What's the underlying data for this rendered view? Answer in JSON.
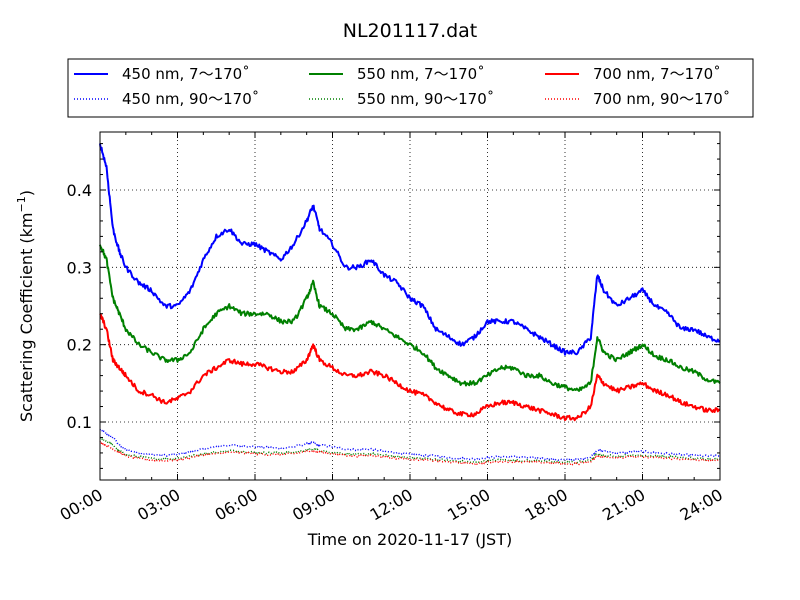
{
  "chart_data": {
    "type": "line",
    "title": "NL201117.dat",
    "xlabel": "Time on 2020-11-17 (JST)",
    "ylabel": "Scattering Coefficient (km",
    "ylabel_exponent": "−1",
    "ylabel_suffix": ")",
    "xlim": [
      0,
      24
    ],
    "ylim": [
      0.025,
      0.475
    ],
    "x_ticks": [
      0,
      3,
      6,
      9,
      12,
      15,
      18,
      21,
      24
    ],
    "x_tick_labels": [
      "00:00",
      "03:00",
      "06:00",
      "09:00",
      "12:00",
      "15:00",
      "18:00",
      "21:00",
      "24:00"
    ],
    "y_ticks": [
      0.1,
      0.2,
      0.3,
      0.4
    ],
    "y_tick_labels": [
      "0.1",
      "0.2",
      "0.3",
      "0.4"
    ],
    "grid": true,
    "legend_position": "top",
    "x_hours": [
      0,
      0.25,
      0.5,
      0.75,
      1,
      1.5,
      2,
      2.5,
      3,
      3.5,
      4,
      4.5,
      5,
      5.5,
      6,
      6.5,
      7,
      7.5,
      8,
      8.25,
      8.5,
      9,
      9.5,
      10,
      10.5,
      11,
      11.5,
      12,
      12.5,
      13,
      13.5,
      14,
      14.5,
      15,
      15.5,
      16,
      16.5,
      17,
      17.5,
      18,
      18.5,
      19,
      19.25,
      19.5,
      20,
      20.5,
      21,
      21.5,
      22,
      22.5,
      23,
      23.5,
      24
    ],
    "series": [
      {
        "name": "450 nm, 7～170˚",
        "color": "#0000ff",
        "style": "solid",
        "values": [
          0.46,
          0.43,
          0.35,
          0.32,
          0.3,
          0.28,
          0.27,
          0.25,
          0.25,
          0.27,
          0.31,
          0.34,
          0.35,
          0.33,
          0.33,
          0.32,
          0.31,
          0.33,
          0.36,
          0.38,
          0.35,
          0.33,
          0.3,
          0.3,
          0.31,
          0.29,
          0.28,
          0.26,
          0.25,
          0.22,
          0.21,
          0.2,
          0.21,
          0.23,
          0.23,
          0.23,
          0.22,
          0.21,
          0.2,
          0.19,
          0.19,
          0.21,
          0.29,
          0.27,
          0.25,
          0.26,
          0.27,
          0.25,
          0.24,
          0.22,
          0.22,
          0.21,
          0.205
        ]
      },
      {
        "name": "550 nm, 7～170˚",
        "color": "#008000",
        "style": "solid",
        "values": [
          0.33,
          0.31,
          0.26,
          0.24,
          0.22,
          0.2,
          0.19,
          0.18,
          0.18,
          0.19,
          0.22,
          0.24,
          0.25,
          0.24,
          0.24,
          0.24,
          0.23,
          0.23,
          0.26,
          0.28,
          0.25,
          0.24,
          0.22,
          0.22,
          0.23,
          0.22,
          0.21,
          0.2,
          0.19,
          0.17,
          0.16,
          0.15,
          0.15,
          0.16,
          0.17,
          0.17,
          0.16,
          0.16,
          0.15,
          0.145,
          0.14,
          0.15,
          0.21,
          0.19,
          0.18,
          0.19,
          0.2,
          0.185,
          0.18,
          0.17,
          0.165,
          0.155,
          0.15
        ]
      },
      {
        "name": "700 nm, 7～170˚",
        "color": "#ff0000",
        "style": "solid",
        "values": [
          0.24,
          0.22,
          0.18,
          0.17,
          0.16,
          0.14,
          0.135,
          0.125,
          0.13,
          0.14,
          0.16,
          0.17,
          0.18,
          0.175,
          0.175,
          0.17,
          0.165,
          0.165,
          0.18,
          0.2,
          0.18,
          0.17,
          0.16,
          0.16,
          0.165,
          0.16,
          0.15,
          0.14,
          0.135,
          0.125,
          0.115,
          0.11,
          0.11,
          0.12,
          0.125,
          0.125,
          0.12,
          0.115,
          0.11,
          0.105,
          0.105,
          0.12,
          0.16,
          0.15,
          0.14,
          0.145,
          0.15,
          0.14,
          0.135,
          0.125,
          0.12,
          0.115,
          0.115
        ]
      },
      {
        "name": "450 nm, 90～170˚",
        "color": "#0000ff",
        "style": "dotted",
        "values": [
          0.09,
          0.085,
          0.08,
          0.07,
          0.065,
          0.06,
          0.058,
          0.057,
          0.058,
          0.062,
          0.065,
          0.068,
          0.07,
          0.069,
          0.068,
          0.067,
          0.066,
          0.068,
          0.072,
          0.073,
          0.07,
          0.068,
          0.065,
          0.064,
          0.065,
          0.062,
          0.06,
          0.058,
          0.057,
          0.056,
          0.054,
          0.053,
          0.052,
          0.054,
          0.055,
          0.055,
          0.054,
          0.053,
          0.052,
          0.051,
          0.051,
          0.055,
          0.064,
          0.062,
          0.06,
          0.061,
          0.062,
          0.06,
          0.059,
          0.058,
          0.057,
          0.056,
          0.056
        ]
      },
      {
        "name": "550 nm, 90～170˚",
        "color": "#008000",
        "style": "dotted",
        "values": [
          0.08,
          0.075,
          0.07,
          0.063,
          0.058,
          0.055,
          0.053,
          0.052,
          0.053,
          0.056,
          0.059,
          0.061,
          0.063,
          0.062,
          0.061,
          0.06,
          0.06,
          0.061,
          0.064,
          0.065,
          0.063,
          0.061,
          0.059,
          0.058,
          0.059,
          0.057,
          0.055,
          0.054,
          0.053,
          0.052,
          0.05,
          0.049,
          0.048,
          0.05,
          0.051,
          0.051,
          0.05,
          0.05,
          0.049,
          0.048,
          0.048,
          0.051,
          0.059,
          0.057,
          0.056,
          0.057,
          0.057,
          0.056,
          0.055,
          0.054,
          0.053,
          0.052,
          0.052
        ]
      },
      {
        "name": "700 nm, 90～170˚",
        "color": "#ff0000",
        "style": "dotted",
        "values": [
          0.075,
          0.07,
          0.065,
          0.06,
          0.056,
          0.053,
          0.051,
          0.05,
          0.051,
          0.054,
          0.057,
          0.059,
          0.061,
          0.06,
          0.059,
          0.058,
          0.058,
          0.059,
          0.062,
          0.063,
          0.061,
          0.059,
          0.057,
          0.056,
          0.057,
          0.055,
          0.053,
          0.052,
          0.051,
          0.05,
          0.048,
          0.047,
          0.046,
          0.048,
          0.049,
          0.049,
          0.048,
          0.048,
          0.047,
          0.046,
          0.046,
          0.049,
          0.057,
          0.055,
          0.054,
          0.055,
          0.055,
          0.054,
          0.053,
          0.052,
          0.051,
          0.05,
          0.05
        ]
      }
    ]
  }
}
